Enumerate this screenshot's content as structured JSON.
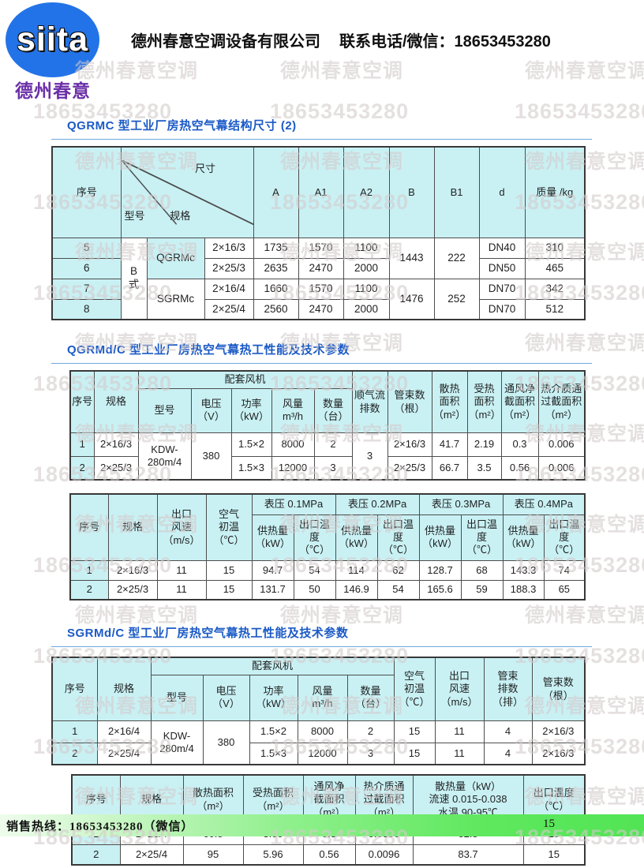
{
  "header": {
    "logo_text": "siita",
    "logo_sub": "德州春意",
    "company": "德州春意空调设备有限公司",
    "contact": "联系电话/微信：18653453280"
  },
  "watermark": {
    "name": "德州春意空调",
    "phone": "18653453280"
  },
  "t1": {
    "title": "QGRMC 型工业厂房热空气幕结构尺寸 (2)",
    "h": {
      "no": "序号",
      "size": "尺寸",
      "model": "型号",
      "spec": "规格",
      "A": "A",
      "A1": "A1",
      "A2": "A2",
      "B": "B",
      "B1": "B1",
      "d": "d",
      "weight": "质量 /kg"
    },
    "group": "B\n式",
    "g1": "QGRMc",
    "g2": "SGRMc",
    "rows": [
      {
        "no": "5",
        "spec": "2×16/3",
        "A": "1735",
        "A1": "1570",
        "A2": "1100",
        "B": "1443",
        "B1": "222",
        "d": "DN40",
        "w": "310"
      },
      {
        "no": "6",
        "spec": "2×25/3",
        "A": "2635",
        "A1": "2470",
        "A2": "2000",
        "d": "DN50",
        "w": "465"
      },
      {
        "no": "7",
        "spec": "2×16/4",
        "A": "1660",
        "A1": "1570",
        "A2": "1100",
        "B": "1476",
        "B1": "252",
        "d": "DN70",
        "w": "342"
      },
      {
        "no": "8",
        "spec": "2×25/4",
        "A": "2560",
        "A1": "2470",
        "A2": "2000",
        "d": "DN70",
        "w": "512"
      }
    ]
  },
  "t2": {
    "title": "QGRMd/C 型工业厂房热空气幕热工性能及技术参数",
    "h": {
      "no": "序号",
      "spec": "规格",
      "fan": "配套风机",
      "model": "型号",
      "volt": "电压\n（V）",
      "power": "功率\n（kW）",
      "flow": "风量\nm³/h",
      "qty": "数量\n（台）",
      "air_rows": "顺气流\n排数",
      "tubes": "管束数\n（根）",
      "heat_area": "散热\n面积\n（m²）",
      "recv_area": "受热\n面积\n（m²）",
      "vent_area": "通风净\n截面积\n（m²）",
      "medium_area": "热介质通\n过截面积\n（m²）"
    },
    "model_val": "KDW-\n280m/4",
    "volt_val": "380",
    "air_rows_val": "3",
    "rows": [
      {
        "no": "1",
        "spec": "2×16/3",
        "power": "1.5×2",
        "flow": "8000",
        "qty": "2",
        "tubes": "2×16/3",
        "heat": "41.7",
        "recv": "2.19",
        "vent": "0.3",
        "medium": "0.006"
      },
      {
        "no": "2",
        "spec": "2×25/3",
        "power": "1.5×3",
        "flow": "12000",
        "qty": "3",
        "tubes": "2×25/3",
        "heat": "66.7",
        "recv": "3.5",
        "vent": "0.56",
        "medium": "0.006"
      }
    ]
  },
  "t3": {
    "h": {
      "no": "序号",
      "spec": "规格",
      "speed": "出口\n风速\n（m/s）",
      "temp": "空气\n初温\n（℃）",
      "p1": "表压 0.1MPa",
      "p2": "表压 0.2MPa",
      "p3": "表压 0.3MPa",
      "p4": "表压 0.4MPa",
      "supply": "供热量\n（kW）",
      "out": "出口温度\n（℃）"
    },
    "rows": [
      {
        "no": "1",
        "spec": "2×16/3",
        "speed": "11",
        "temp": "15",
        "v": [
          "94.7",
          "54",
          "114",
          "62",
          "128.7",
          "68",
          "143.3",
          "74"
        ]
      },
      {
        "no": "2",
        "spec": "2×25/3",
        "speed": "11",
        "temp": "15",
        "v": [
          "131.7",
          "50",
          "146.9",
          "54",
          "165.6",
          "59",
          "188.3",
          "65"
        ]
      }
    ]
  },
  "t4": {
    "title": "SGRMd/C 型工业厂房热空气幕热工性能及技术参数",
    "h": {
      "no": "序号",
      "spec": "规格",
      "fan": "配套风机",
      "model": "型号",
      "volt": "电压\n（V）",
      "power": "功率\n（kW）",
      "flow": "风量\nm³/h",
      "qty": "数量\n（台）",
      "air": "空气\n初温\n（℃）",
      "speed": "出口\n风速\n（m/s）",
      "tube_rows": "管束\n排数\n（排）",
      "tubes": "管束数\n（根）"
    },
    "model_val": "KDW-\n280m/4",
    "volt_val": "380",
    "rows": [
      {
        "no": "1",
        "spec": "2×16/4",
        "power": "1.5×2",
        "flow": "8000",
        "qty": "2",
        "air": "15",
        "speed": "11",
        "tube_rows": "4",
        "tubes": "2×16/3"
      },
      {
        "no": "2",
        "spec": "2×25/4",
        "power": "1.5×3",
        "flow": "12000",
        "qty": "3",
        "air": "15",
        "speed": "11",
        "tube_rows": "4",
        "tubes": "2×16/3"
      }
    ]
  },
  "t5": {
    "h": {
      "no": "序号",
      "spec": "规格",
      "heat_area": "散热面积\n（m²）",
      "recv_area": "受热面积\n（m²）",
      "vent_area": "通风净\n截面积\n（m²）",
      "medium_area": "热介质通\n过截面积\n（m²）",
      "capacity": "散热量（kW）\n流速 0.015-0.038\n水温 90-95℃",
      "out_temp": "出口温度\n（℃）"
    },
    "rows": [
      {
        "no": "1",
        "spec": "2×16/4",
        "heat": "60.8",
        "recv": "3.60",
        "vent": "0.3",
        "medium": "0.0096",
        "cap": "62.8",
        "out": "15"
      },
      {
        "no": "2",
        "spec": "2×25/4",
        "heat": "95",
        "recv": "5.96",
        "vent": "0.56",
        "medium": "0.0096",
        "cap": "83.7",
        "out": "15"
      }
    ]
  },
  "footer": {
    "hotline": "销售热线：18653453280（微信）",
    "page": "15"
  }
}
